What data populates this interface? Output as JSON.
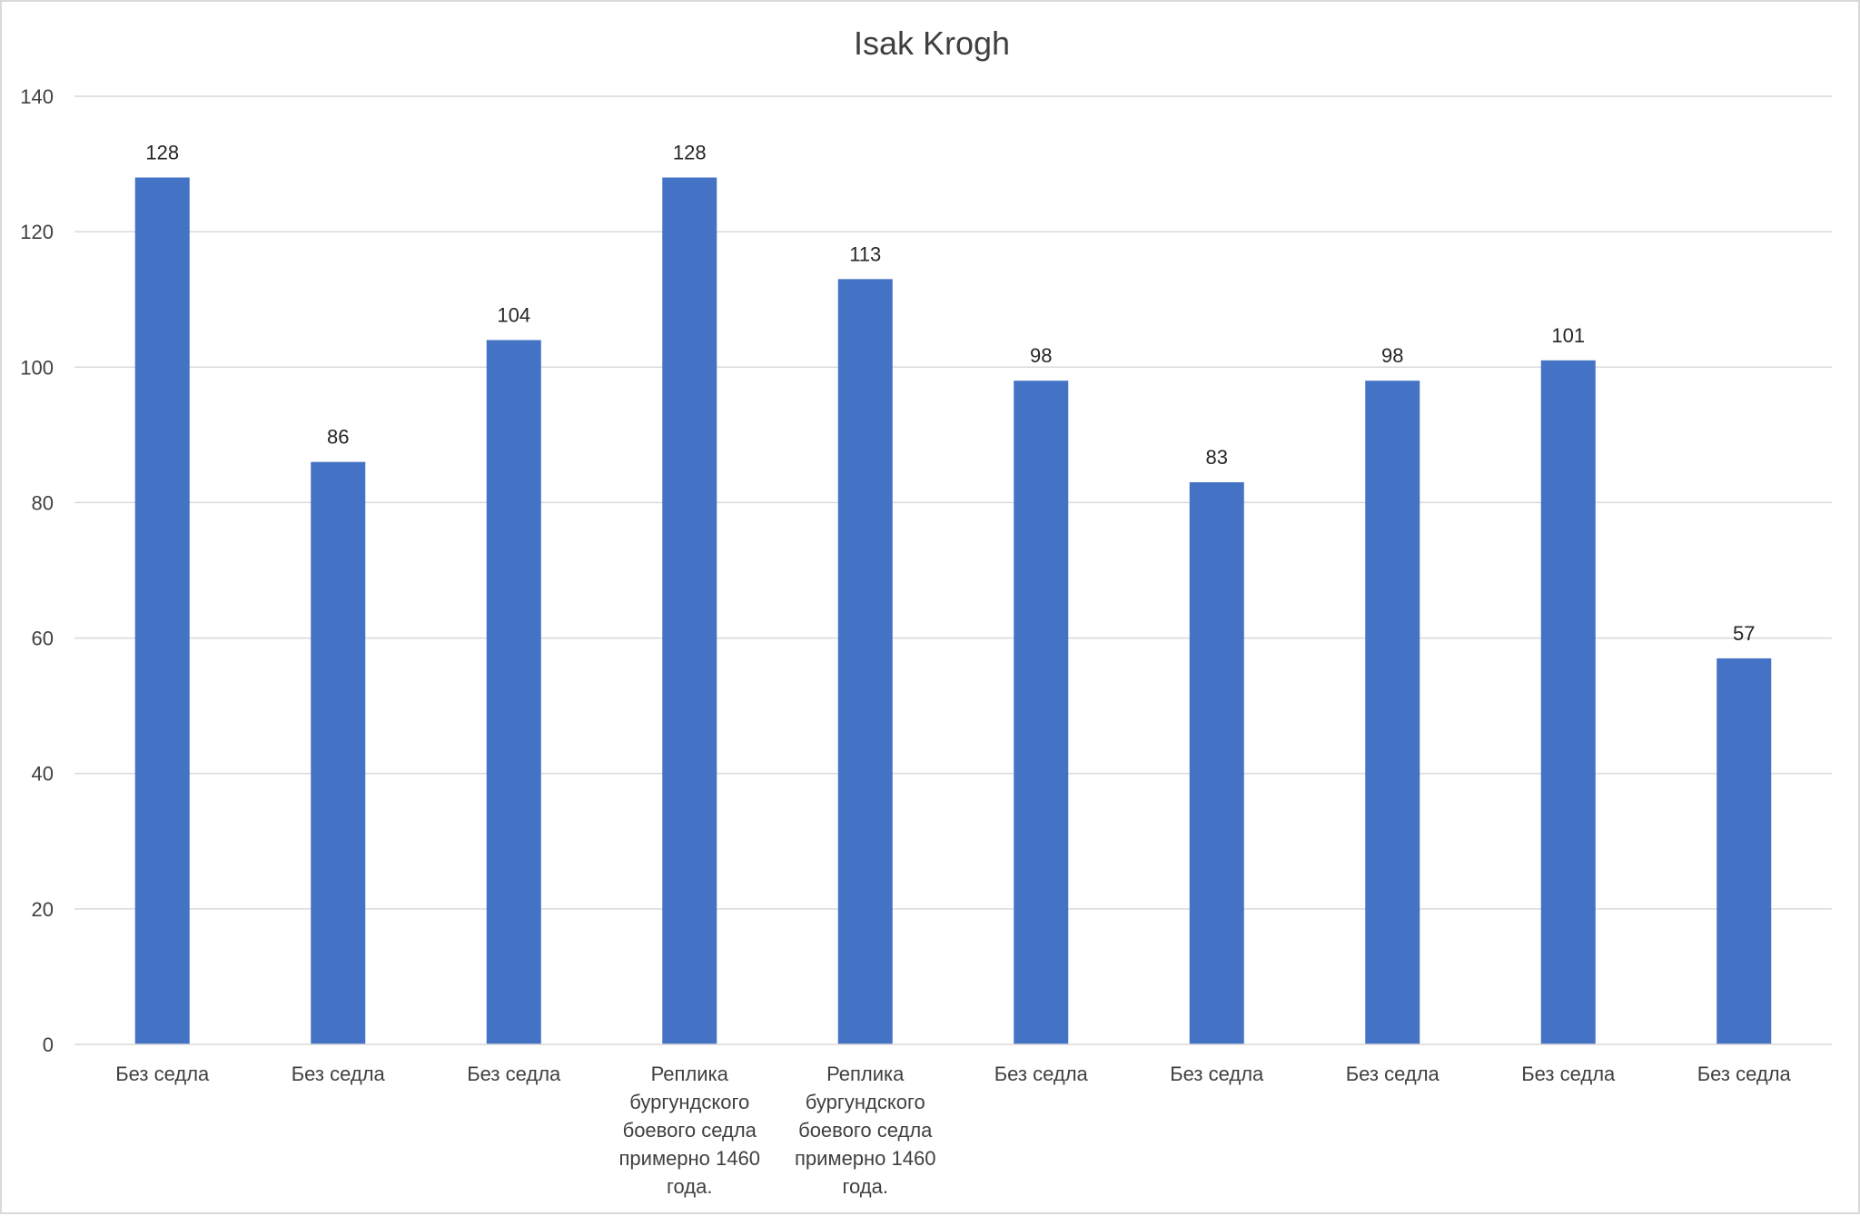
{
  "chart_data": {
    "type": "bar",
    "title": "Isak Krogh",
    "xlabel": "",
    "ylabel": "",
    "ylim": [
      0,
      140
    ],
    "yticks": [
      0,
      20,
      40,
      60,
      80,
      100,
      120,
      140
    ],
    "grid": true,
    "legend": "none",
    "bar_color": "#4472C4",
    "categories": [
      [
        "Без седла"
      ],
      [
        "Без седла"
      ],
      [
        "Без седла"
      ],
      [
        "Реплика",
        "бургундского",
        "боевого седла",
        "примерно 1460",
        "года."
      ],
      [
        "Реплика",
        "бургундского",
        "боевого седла",
        "примерно 1460",
        "года."
      ],
      [
        "Без седла"
      ],
      [
        "Без седла"
      ],
      [
        "Без седла"
      ],
      [
        "Без седла"
      ],
      [
        "Без седла"
      ]
    ],
    "values": [
      128,
      86,
      104,
      128,
      113,
      98,
      83,
      98,
      101,
      57
    ]
  }
}
